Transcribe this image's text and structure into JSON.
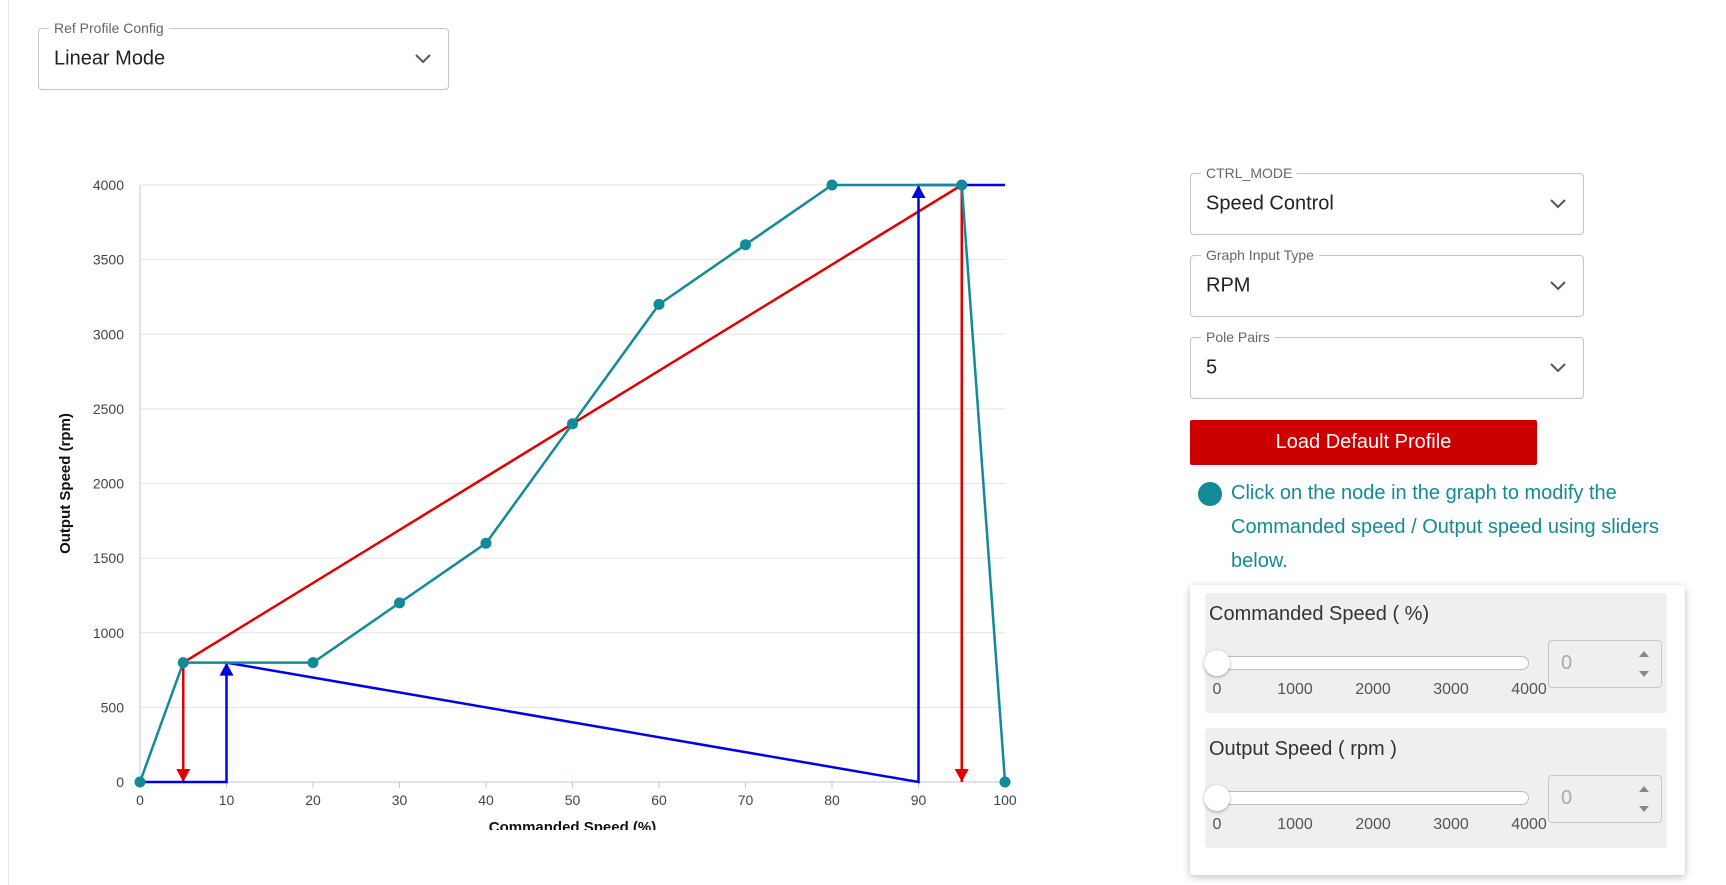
{
  "ref_profile": {
    "label": "Ref Profile Config",
    "value": "Linear Mode"
  },
  "ctrl_mode": {
    "label": "CTRL_MODE",
    "value": "Speed Control"
  },
  "graph_input_type": {
    "label": "Graph Input Type",
    "value": "RPM"
  },
  "pole_pairs": {
    "label": "Pole Pairs",
    "value": "5"
  },
  "load_button": "Load Default Profile",
  "info_text": "Click on the node in the graph to modify the Commanded speed / Output speed using sliders below.",
  "colors": {
    "line": "#138a98",
    "red": "#e00000",
    "blue": "#0000e6",
    "button": "#cc0000"
  },
  "sliders": [
    {
      "title": "Commanded Speed ( %)",
      "ticks": [
        "0",
        "1000",
        "2000",
        "3000",
        "4000"
      ],
      "value": "0",
      "level": 0
    },
    {
      "title": "Output Speed ( rpm )",
      "ticks": [
        "0",
        "1000",
        "2000",
        "3000",
        "4000"
      ],
      "value": "0",
      "level": 0
    }
  ],
  "chart_data": {
    "type": "line",
    "xlabel": "Commanded Speed (%)",
    "ylabel": "Output Speed (rpm)",
    "xlim": [
      0,
      100
    ],
    "ylim": [
      0,
      4000
    ],
    "xticks": [
      "0",
      "10",
      "20",
      "30",
      "40",
      "50",
      "60",
      "70",
      "80",
      "90",
      "100"
    ],
    "yticks": [
      "0",
      "500",
      "1000",
      "1500",
      "2000",
      "2500",
      "3000",
      "3500",
      "4000"
    ],
    "grid": "horizontal",
    "series": [
      {
        "x": [
          0,
          5,
          20,
          30,
          40,
          50,
          60,
          70,
          80,
          95,
          100
        ],
        "y": [
          0,
          800,
          800,
          1200,
          1600,
          2400,
          3200,
          3600,
          4000,
          4000,
          0
        ]
      }
    ],
    "red_path": {
      "x": [
        5,
        5,
        95,
        95
      ],
      "y": [
        0,
        800,
        4000,
        0
      ]
    },
    "blue_path": {
      "x": [
        0,
        10,
        10,
        90,
        90,
        100
      ],
      "y": [
        0,
        0,
        800,
        0,
        4000,
        4000
      ]
    }
  }
}
